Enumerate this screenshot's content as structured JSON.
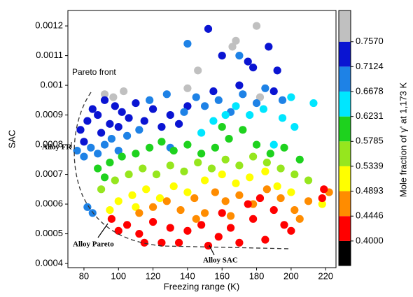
{
  "chart_data": {
    "type": "scatter",
    "x_label": "Freezing range (K)",
    "y_label": "SAC",
    "colorbar_label": "Mole fraction of γ' at 1,173 K",
    "annotations": [
      "Pareto front",
      "Alloy FR",
      "Alloy Pareto",
      "Alloy SAC"
    ],
    "xlim": [
      70.7,
      226
    ],
    "ylim": [
      0.000386,
      0.001252
    ],
    "xticks": [
      80,
      100,
      120,
      140,
      160,
      180,
      200,
      220
    ],
    "yticks": [
      0.0004,
      0.0005,
      0.0006,
      0.0007,
      0.0008,
      0.0009,
      0.001,
      0.0011,
      0.0012
    ],
    "clim": [
      0.356,
      0.813
    ],
    "cticks": [
      {
        "value": 0.4,
        "label": "0.4000"
      },
      {
        "value": 0.4446,
        "label": "0.4446"
      },
      {
        "value": 0.4893,
        "label": "0.4893"
      },
      {
        "value": 0.5339,
        "label": "0.5339"
      },
      {
        "value": 0.5785,
        "label": "0.5785"
      },
      {
        "value": 0.6231,
        "label": "0.6231"
      },
      {
        "value": 0.6678,
        "label": "0.6678"
      },
      {
        "value": 0.7124,
        "label": "0.7124"
      },
      {
        "value": 0.757,
        "label": "0.7570"
      }
    ],
    "colormap": [
      "#000000",
      "#ff0000",
      "#ff8c00",
      "#ffff00",
      "#96e61e",
      "#1ed21e",
      "#00e6ff",
      "#1e82e6",
      "#0a14d2",
      "#c0c0c0"
    ],
    "x": [
      92,
      97,
      103,
      140,
      146,
      166,
      168,
      180,
      182,
      78,
      82,
      85,
      88,
      92,
      95,
      98,
      102,
      106,
      110,
      115,
      120,
      125,
      130,
      135,
      80,
      90,
      100,
      140,
      152,
      155,
      170,
      178,
      187,
      192,
      190,
      175,
      160,
      76,
      80,
      84,
      88,
      92,
      96,
      100,
      105,
      112,
      118,
      128,
      138,
      145,
      150,
      158,
      165,
      172,
      180,
      185,
      140,
      170,
      195,
      82,
      85,
      130,
      155,
      162,
      168,
      176,
      184,
      195,
      202,
      213,
      190,
      200,
      148,
      88,
      95,
      102,
      110,
      118,
      125,
      132,
      140,
      148,
      156,
      164,
      172,
      180,
      188,
      196,
      205,
      92,
      160,
      90,
      98,
      106,
      114,
      122,
      130,
      138,
      146,
      154,
      162,
      170,
      178,
      186,
      194,
      202,
      210,
      95,
      100,
      108,
      116,
      124,
      132,
      140,
      150,
      160,
      168,
      176,
      185,
      192,
      200,
      218,
      110,
      112,
      120,
      128,
      136,
      144,
      150,
      156,
      162,
      170,
      178,
      186,
      194,
      202,
      210,
      222,
      145,
      165,
      205,
      100,
      105,
      112,
      120,
      125,
      130,
      135,
      140,
      148,
      152,
      158,
      165,
      170,
      178,
      185,
      190,
      196,
      160,
      175,
      182,
      200,
      219,
      218,
      96,
      115
    ],
    "y": [
      0.00097,
      0.00096,
      0.00098,
      0.00099,
      0.00105,
      0.00113,
      0.00115,
      0.0012,
      0.00096,
      0.00085,
      0.00088,
      0.00092,
      0.0009,
      0.00095,
      0.00087,
      0.00093,
      0.00091,
      0.00089,
      0.00094,
      0.00088,
      0.00092,
      0.00086,
      0.0009,
      0.00087,
      0.00081,
      0.00084,
      0.00086,
      0.00093,
      0.00119,
      0.00098,
      0.001,
      0.00106,
      0.00113,
      0.00105,
      0.00098,
      0.00108,
      0.0011,
      0.00078,
      0.00076,
      0.00079,
      0.00077,
      0.0008,
      0.00082,
      0.00078,
      0.00083,
      0.00085,
      0.00095,
      0.00097,
      0.00091,
      0.00096,
      0.00093,
      0.00095,
      0.00091,
      0.00097,
      0.00094,
      0.00099,
      0.00114,
      0.0011,
      0.00095,
      0.00059,
      0.00057,
      0.00079,
      0.00088,
      0.0009,
      0.00093,
      0.0009,
      0.00092,
      0.00089,
      0.00086,
      0.00094,
      0.0008,
      0.00096,
      0.00084,
      0.00072,
      0.00074,
      0.00076,
      0.00077,
      0.00079,
      0.00081,
      0.00078,
      0.0008,
      0.00077,
      0.00079,
      0.00082,
      0.00085,
      0.0008,
      0.00077,
      0.00079,
      0.00075,
      0.00069,
      0.00086,
      0.00065,
      0.00068,
      0.0007,
      0.00072,
      0.0007,
      0.00073,
      0.00071,
      0.00074,
      0.00072,
      0.00075,
      0.00073,
      0.00076,
      0.00074,
      0.00072,
      0.0007,
      0.00068,
      0.00058,
      0.00061,
      0.00063,
      0.00065,
      0.00062,
      0.00066,
      0.00064,
      0.00068,
      0.0007,
      0.00067,
      0.00069,
      0.00071,
      0.00066,
      0.00064,
      0.0006,
      0.00059,
      0.00057,
      0.00059,
      0.00061,
      0.00058,
      0.00062,
      0.00057,
      0.00064,
      0.00061,
      0.00063,
      0.0006,
      0.00065,
      0.00062,
      0.00058,
      0.00061,
      0.00064,
      0.00055,
      0.00056,
      0.00055,
      0.00051,
      0.00053,
      0.0005,
      0.00054,
      0.00047,
      0.00052,
      0.00047,
      0.00051,
      0.00053,
      0.00046,
      0.00049,
      0.00052,
      0.00047,
      0.00055,
      0.00048,
      0.00058,
      0.00053,
      0.00057,
      0.0006,
      0.00062,
      0.00051,
      0.00065,
      0.00062,
      0.00055,
      0.00047
    ],
    "c": [
      0.78,
      0.78,
      0.78,
      0.78,
      0.78,
      0.78,
      0.78,
      0.78,
      0.78,
      0.735,
      0.735,
      0.735,
      0.735,
      0.735,
      0.735,
      0.735,
      0.735,
      0.735,
      0.735,
      0.735,
      0.735,
      0.735,
      0.735,
      0.735,
      0.735,
      0.735,
      0.735,
      0.735,
      0.735,
      0.735,
      0.735,
      0.735,
      0.735,
      0.735,
      0.735,
      0.735,
      0.735,
      0.69,
      0.69,
      0.69,
      0.69,
      0.69,
      0.69,
      0.69,
      0.69,
      0.69,
      0.69,
      0.69,
      0.69,
      0.69,
      0.69,
      0.69,
      0.69,
      0.69,
      0.69,
      0.69,
      0.69,
      0.69,
      0.69,
      0.69,
      0.69,
      0.69,
      0.645,
      0.645,
      0.645,
      0.645,
      0.645,
      0.645,
      0.645,
      0.645,
      0.645,
      0.645,
      0.645,
      0.6,
      0.6,
      0.6,
      0.6,
      0.6,
      0.6,
      0.6,
      0.6,
      0.6,
      0.6,
      0.6,
      0.6,
      0.6,
      0.6,
      0.6,
      0.6,
      0.6,
      0.6,
      0.555,
      0.555,
      0.555,
      0.555,
      0.555,
      0.555,
      0.555,
      0.555,
      0.555,
      0.555,
      0.555,
      0.555,
      0.555,
      0.555,
      0.555,
      0.555,
      0.51,
      0.51,
      0.51,
      0.51,
      0.51,
      0.51,
      0.51,
      0.51,
      0.51,
      0.51,
      0.51,
      0.51,
      0.51,
      0.51,
      0.51,
      0.51,
      0.467,
      0.467,
      0.467,
      0.467,
      0.467,
      0.467,
      0.467,
      0.467,
      0.467,
      0.467,
      0.467,
      0.467,
      0.467,
      0.467,
      0.467,
      0.467,
      0.467,
      0.467,
      0.42,
      0.42,
      0.42,
      0.42,
      0.42,
      0.42,
      0.42,
      0.42,
      0.42,
      0.42,
      0.42,
      0.42,
      0.42,
      0.42,
      0.42,
      0.42,
      0.42,
      0.42,
      0.42,
      0.42,
      0.42,
      0.42,
      0.42,
      0.42,
      0.42
    ]
  }
}
